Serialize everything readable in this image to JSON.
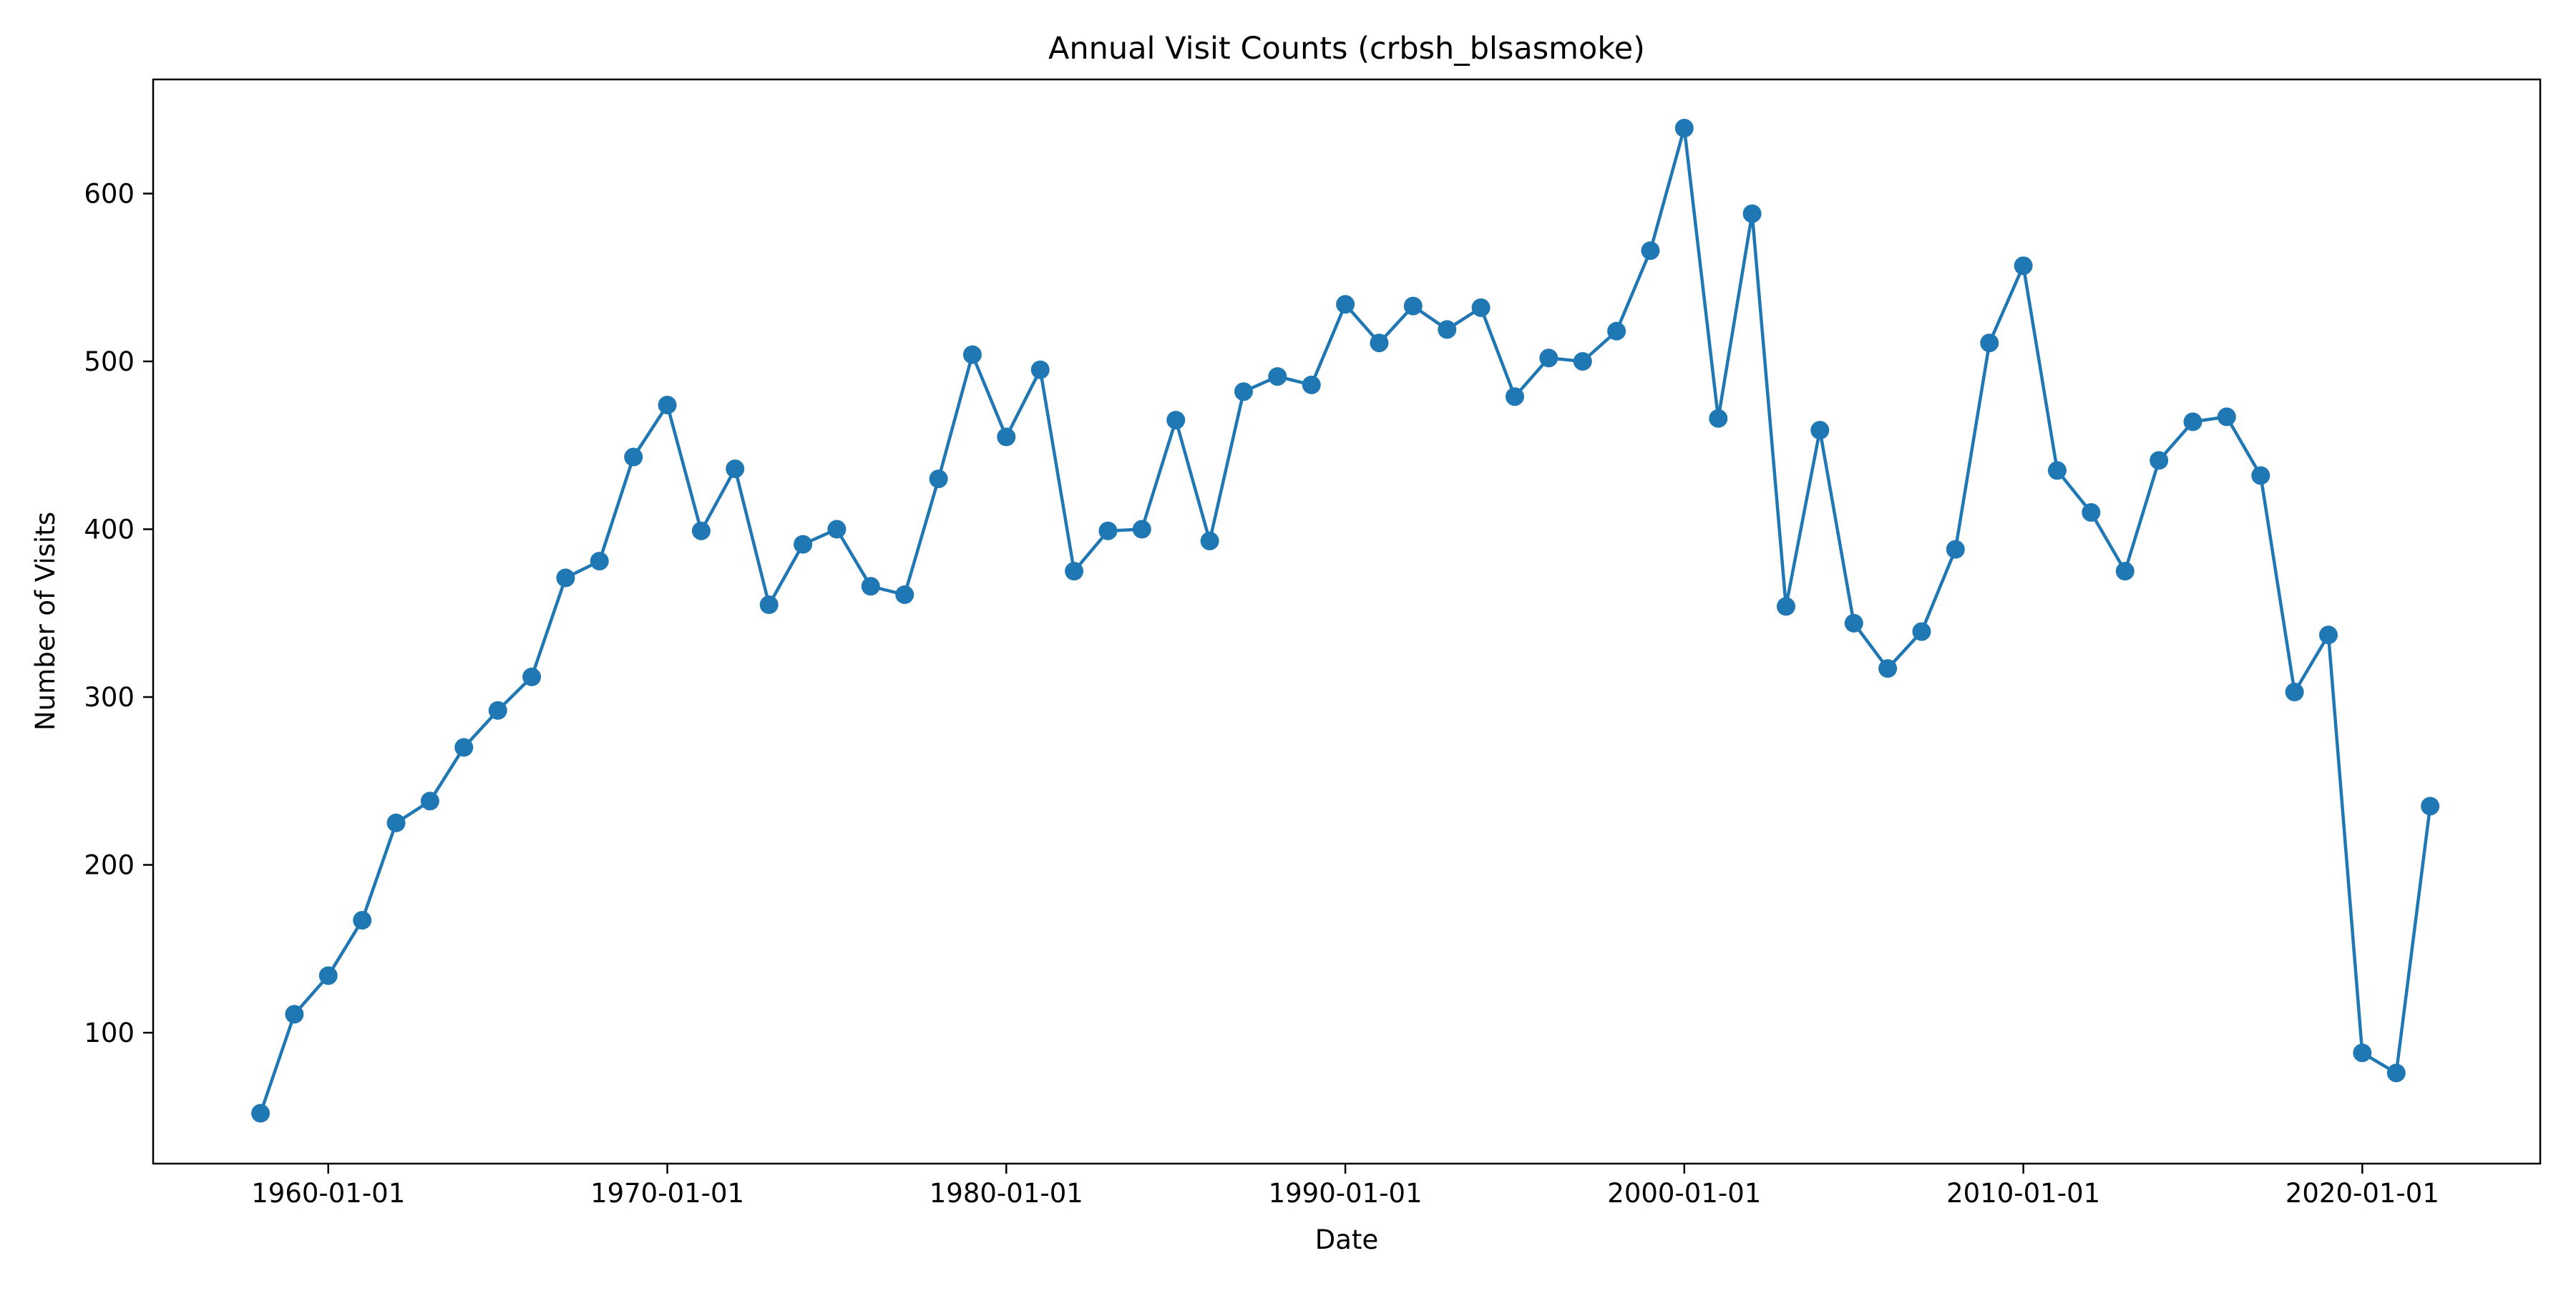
{
  "chart_data": {
    "type": "line",
    "title": "Annual Visit Counts (crbsh_blsasmoke)",
    "xlabel": "Date",
    "ylabel": "Number of Visits",
    "x_scale": "date",
    "xlim": [
      "1954-11-01",
      "2025-04-01"
    ],
    "ylim": [
      22,
      668
    ],
    "grid": false,
    "legend": "none",
    "x_ticks": [
      "1960-01-01",
      "1970-01-01",
      "1980-01-01",
      "1990-01-01",
      "2000-01-01",
      "2010-01-01",
      "2020-01-01"
    ],
    "y_ticks": [
      100,
      200,
      300,
      400,
      500,
      600
    ],
    "colors": {
      "series": "#1f77b4",
      "axes": "#000000",
      "background": "#ffffff"
    },
    "marker": "circle",
    "series": [
      {
        "x": [
          "1958-01-01",
          "1959-01-01",
          "1960-01-01",
          "1961-01-01",
          "1962-01-01",
          "1963-01-01",
          "1964-01-01",
          "1965-01-01",
          "1966-01-01",
          "1967-01-01",
          "1968-01-01",
          "1969-01-01",
          "1970-01-01",
          "1971-01-01",
          "1972-01-01",
          "1973-01-01",
          "1974-01-01",
          "1975-01-01",
          "1976-01-01",
          "1977-01-01",
          "1978-01-01",
          "1979-01-01",
          "1980-01-01",
          "1981-01-01",
          "1982-01-01",
          "1983-01-01",
          "1984-01-01",
          "1985-01-01",
          "1986-01-01",
          "1987-01-01",
          "1988-01-01",
          "1989-01-01",
          "1990-01-01",
          "1991-01-01",
          "1992-01-01",
          "1993-01-01",
          "1994-01-01",
          "1995-01-01",
          "1996-01-01",
          "1997-01-01",
          "1998-01-01",
          "1999-01-01",
          "2000-01-01",
          "2001-01-01",
          "2002-01-01",
          "2003-01-01",
          "2004-01-01",
          "2005-01-01",
          "2006-01-01",
          "2007-01-01",
          "2008-01-01",
          "2009-01-01",
          "2010-01-01",
          "2011-01-01",
          "2012-01-01",
          "2013-01-01",
          "2014-01-01",
          "2015-01-01",
          "2016-01-01",
          "2017-01-01",
          "2018-01-01",
          "2019-01-01",
          "2020-01-01",
          "2021-01-01",
          "2022-01-01"
        ],
        "values": [
          52,
          111,
          134,
          167,
          225,
          238,
          270,
          292,
          312,
          371,
          381,
          443,
          474,
          399,
          436,
          355,
          391,
          400,
          366,
          361,
          430,
          504,
          455,
          495,
          375,
          399,
          400,
          465,
          393,
          482,
          491,
          486,
          534,
          511,
          533,
          519,
          532,
          479,
          502,
          500,
          518,
          566,
          639,
          466,
          588,
          354,
          459,
          344,
          317,
          339,
          388,
          511,
          557,
          435,
          410,
          375,
          441,
          464,
          467,
          432,
          303,
          337,
          88,
          76,
          235
        ]
      }
    ]
  }
}
